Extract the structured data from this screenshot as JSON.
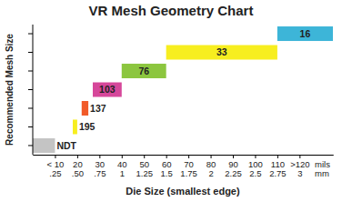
{
  "chart_data": {
    "type": "bar",
    "orientation": "horizontal",
    "title": "VR Mesh Geometry Chart",
    "xlabel": "Die Size (smallest edge)",
    "ylabel": "Recommended Mesh Size",
    "x_unit": "mils",
    "x2_unit": "mm",
    "categories": [
      "NDT",
      "195",
      "137",
      "103",
      "76",
      "33",
      "16"
    ],
    "starts": [
      0,
      18,
      22,
      27,
      40,
      60,
      110
    ],
    "ends": [
      10,
      20,
      25,
      40,
      60,
      110,
      135
    ],
    "colors": [
      "#c4c4c4",
      "#f7ee1f",
      "#f15a29",
      "#d6479a",
      "#8cc63f",
      "#f7ee1f",
      "#3db5d8"
    ],
    "xlim": [
      0,
      135
    ],
    "xticks": [
      {
        "value": 10,
        "label": "< 10"
      },
      20,
      30,
      40,
      50,
      60,
      70,
      80,
      90,
      100,
      110,
      {
        "value": 120,
        "label": ">120"
      }
    ],
    "x2lim": [
      0,
      3.375
    ],
    "x2ticks": [
      {
        "value": 0.25,
        "label": ".25"
      },
      {
        "value": 0.5,
        "label": ".50"
      },
      {
        "value": 0.75,
        "label": ".75"
      },
      1,
      1.25,
      1.5,
      1.75,
      2,
      2.25,
      2.5,
      2.75,
      3
    ],
    "grid": false,
    "tick_labels": "x"
  }
}
